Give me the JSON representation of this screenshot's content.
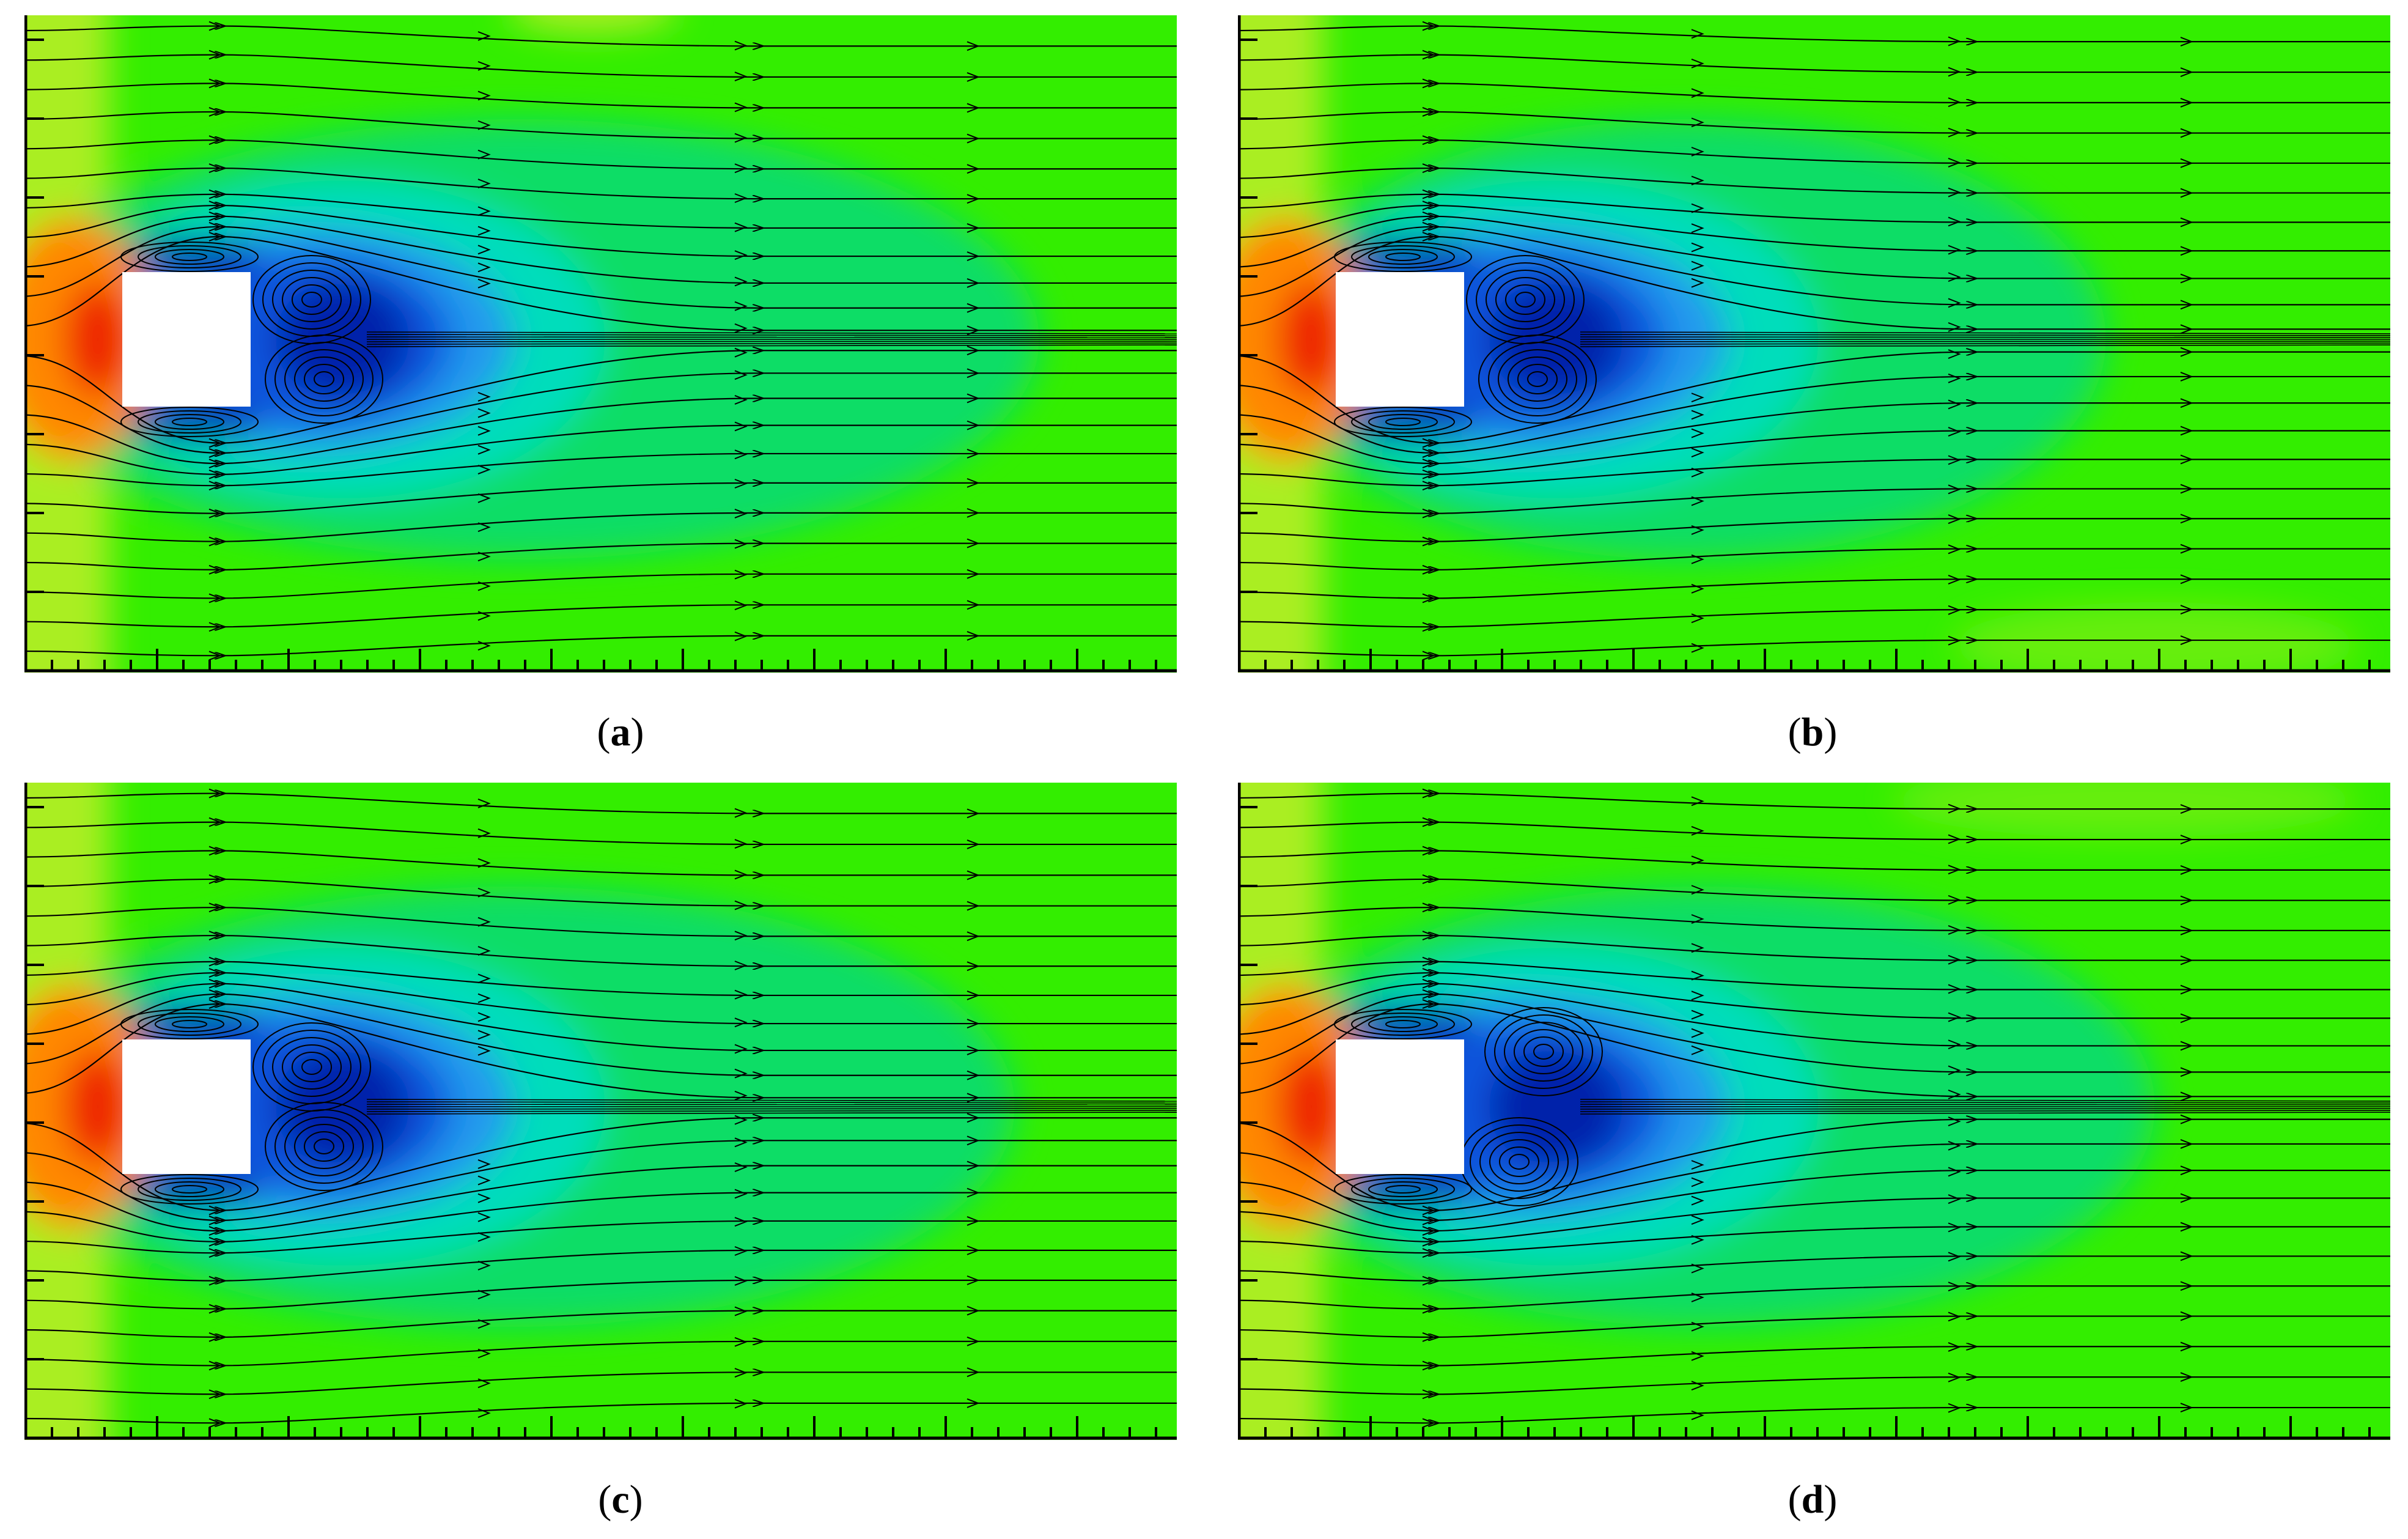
{
  "figure": {
    "panels": [
      {
        "id": "a",
        "caption_open": "(",
        "caption_letter": "a",
        "caption_close": ")",
        "variant": "a"
      },
      {
        "id": "b",
        "caption_open": "(",
        "caption_letter": "b",
        "caption_close": ")",
        "variant": "b"
      },
      {
        "id": "c",
        "caption_open": "(",
        "caption_letter": "c",
        "caption_close": ")",
        "variant": "c"
      },
      {
        "id": "d",
        "caption_open": "(",
        "caption_letter": "d",
        "caption_close": ")",
        "variant": "d"
      }
    ],
    "colors": {
      "field": "#33ee00",
      "light_green": "#66ee11",
      "yellow_green": "#aaee22",
      "cyan_green": "#11dd66",
      "cyan": "#00ddbb",
      "light_blue": "#2299ee",
      "blue": "#1155dd",
      "dark_blue": "#0022aa",
      "orange": "#ff8800",
      "red": "#ee2200",
      "obstacle": "#ffffff",
      "streamline": "#000000"
    }
  }
}
